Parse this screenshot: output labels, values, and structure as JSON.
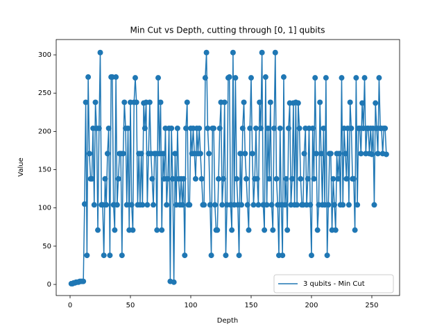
{
  "chart_data": {
    "type": "line",
    "title": "Min Cut vs Depth, cutting through [0, 1] qubits",
    "xlabel": "Depth",
    "ylabel": "Value",
    "x": [
      1,
      2,
      3,
      4,
      5,
      6,
      7,
      8,
      9,
      10,
      11,
      12,
      13,
      14,
      15,
      16,
      17,
      18,
      19,
      20,
      21,
      22,
      23,
      24,
      25,
      26,
      27,
      28,
      29,
      30,
      31,
      32,
      33,
      34,
      35,
      36,
      37,
      38,
      39,
      40,
      41,
      42,
      43,
      44,
      45,
      46,
      47,
      48,
      49,
      50,
      51,
      52,
      53,
      54,
      55,
      56,
      57,
      58,
      59,
      60,
      61,
      62,
      63,
      64,
      65,
      66,
      67,
      68,
      69,
      70,
      71,
      72,
      73,
      74,
      75,
      76,
      77,
      78,
      79,
      80,
      81,
      82,
      83,
      84,
      85,
      86,
      87,
      88,
      89,
      90,
      91,
      92,
      93,
      94,
      95,
      96,
      97,
      98,
      99,
      100,
      101,
      102,
      103,
      104,
      105,
      106,
      107,
      108,
      109,
      110,
      111,
      112,
      113,
      114,
      115,
      116,
      117,
      118,
      119,
      120,
      121,
      122,
      123,
      124,
      125,
      126,
      127,
      128,
      129,
      130,
      131,
      132,
      133,
      134,
      135,
      136,
      137,
      138,
      139,
      140,
      141,
      142,
      143,
      144,
      145,
      146,
      147,
      148,
      149,
      150,
      151,
      152,
      153,
      154,
      155,
      156,
      157,
      158,
      159,
      160,
      161,
      162,
      163,
      164,
      165,
      166,
      167,
      168,
      169,
      170,
      171,
      172,
      173,
      174,
      175,
      176,
      177,
      178,
      179,
      180,
      181,
      182,
      183,
      184,
      185,
      186,
      187,
      188,
      189,
      190,
      191,
      192,
      193,
      194,
      195,
      196,
      197,
      198,
      199,
      200,
      201,
      202,
      203,
      204,
      205,
      206,
      207,
      208,
      209,
      210,
      211,
      212,
      213,
      214,
      215,
      216,
      217,
      218,
      219,
      220,
      221,
      222,
      223,
      224,
      225,
      226,
      227,
      228,
      229,
      230,
      231,
      232,
      233,
      234,
      235,
      236,
      237,
      238,
      239,
      240,
      241,
      242,
      243,
      244,
      245,
      246,
      247,
      248,
      249,
      250,
      251,
      252,
      253,
      254,
      255,
      256,
      257,
      258,
      259,
      260,
      261,
      262
    ],
    "series": [
      {
        "name": "3 qubits - Min Cut",
        "color": "#1f77b4",
        "values": [
          1,
          1,
          2,
          2,
          3,
          3,
          3,
          4,
          4,
          4,
          4,
          105,
          238,
          38,
          271,
          171,
          138,
          138,
          204,
          104,
          238,
          204,
          71,
          204,
          303,
          104,
          104,
          38,
          138,
          104,
          171,
          204,
          38,
          271,
          271,
          104,
          71,
          271,
          104,
          138,
          171,
          171,
          38,
          171,
          238,
          204,
          104,
          204,
          71,
          238,
          104,
          71,
          238,
          270,
          238,
          104,
          171,
          104,
          171,
          104,
          237,
          204,
          238,
          104,
          171,
          238,
          171,
          138,
          104,
          171,
          171,
          71,
          270,
          171,
          238,
          71,
          171,
          138,
          204,
          104,
          138,
          204,
          4,
          204,
          138,
          3,
          171,
          104,
          204,
          138,
          104,
          138,
          104,
          138,
          38,
          204,
          238,
          104,
          104,
          204,
          171,
          204,
          171,
          138,
          204,
          171,
          204,
          171,
          138,
          104,
          104,
          270,
          303,
          204,
          171,
          104,
          38,
          204,
          204,
          104,
          71,
          71,
          138,
          204,
          238,
          104,
          138,
          238,
          38,
          104,
          270,
          271,
          104,
          71,
          303,
          104,
          270,
          138,
          104,
          38,
          171,
          104,
          204,
          238,
          171,
          138,
          104,
          71,
          204,
          270,
          171,
          104,
          138,
          204,
          138,
          104,
          238,
          204,
          303,
          104,
          71,
          271,
          104,
          204,
          138,
          238,
          104,
          71,
          204,
          303,
          138,
          104,
          38,
          204,
          104,
          38,
          271,
          104,
          138,
          71,
          204,
          237,
          104,
          138,
          237,
          104,
          238,
          104,
          237,
          204,
          138,
          104,
          104,
          171,
          204,
          104,
          138,
          204,
          104,
          38,
          204,
          138,
          270,
          171,
          71,
          104,
          238,
          171,
          104,
          204,
          104,
          270,
          38,
          104,
          171,
          171,
          71,
          138,
          104,
          71,
          171,
          138,
          171,
          104,
          270,
          104,
          204,
          171,
          138,
          204,
          104,
          238,
          204,
          138,
          138,
          71,
          270,
          104,
          204,
          204,
          171,
          237,
          204,
          270,
          171,
          204,
          204,
          171,
          204,
          170,
          204,
          104,
          237,
          204,
          171,
          270,
          204,
          204,
          171,
          204,
          204,
          170
        ]
      }
    ],
    "xlim": [
      -11.5,
      273
    ],
    "ylim": [
      -14.5,
      320
    ],
    "xticks": [
      0,
      50,
      100,
      150,
      200,
      250
    ],
    "yticks": [
      0,
      50,
      100,
      150,
      200,
      250,
      300
    ],
    "legend": "lower right"
  }
}
